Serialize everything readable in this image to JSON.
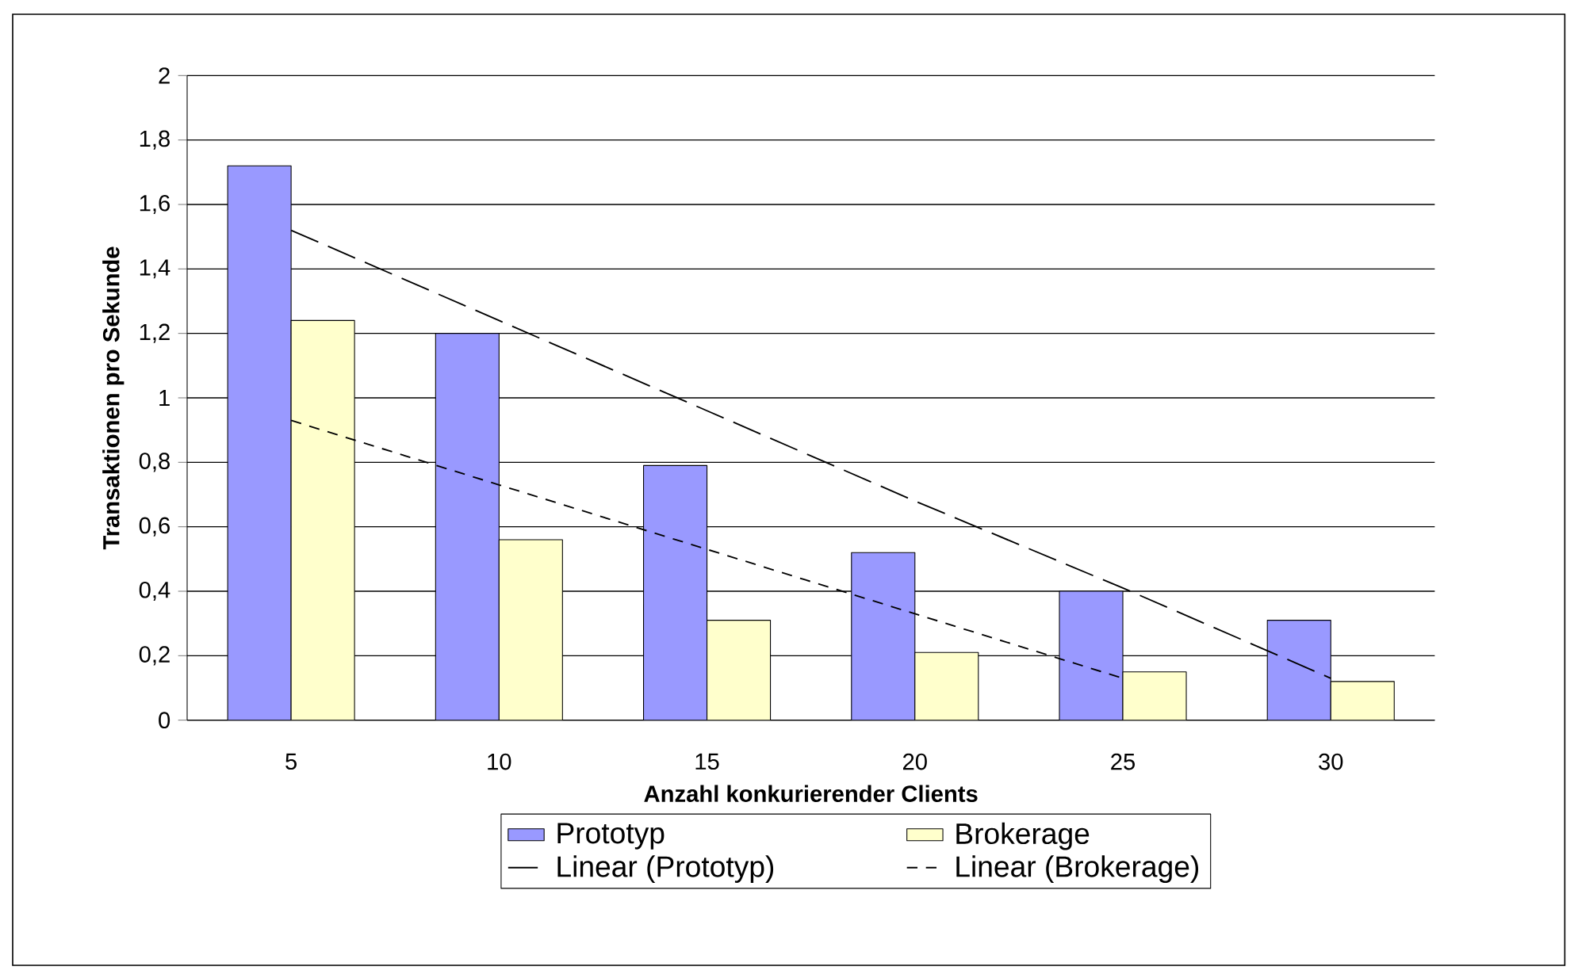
{
  "chart_data": {
    "type": "bar",
    "xlabel": "Anzahl konkurierender Clients",
    "ylabel": "Transaktionen pro Sekunde",
    "categories": [
      "5",
      "10",
      "15",
      "20",
      "25",
      "30"
    ],
    "ylim": [
      0,
      2
    ],
    "yticks": [
      0,
      {
        "value": 0.2,
        "label": "0,2"
      },
      {
        "value": 0.4,
        "label": "0,4"
      },
      {
        "value": 0.6,
        "label": "0,6"
      },
      {
        "value": 0.8,
        "label": "0,8"
      },
      1,
      {
        "value": 1.2,
        "label": "1,2"
      },
      {
        "value": 1.4,
        "label": "1,4"
      },
      {
        "value": 1.6,
        "label": "1,6"
      },
      {
        "value": 1.8,
        "label": "1,8"
      },
      2
    ],
    "grid": "y",
    "legend": "bottom",
    "series": [
      {
        "name": "Prototyp",
        "color": "#9999ff",
        "values": [
          1.72,
          1.2,
          0.79,
          0.52,
          0.4,
          0.31
        ]
      },
      {
        "name": "Brokerage",
        "color": "#ffffcc",
        "values": [
          1.24,
          0.56,
          0.31,
          0.21,
          0.15,
          0.12
        ]
      },
      {
        "name": "Linear (Prototyp)",
        "type": "line",
        "color": "#000000",
        "line_style": "dashed",
        "values": [
          1.52,
          1.24,
          0.96,
          0.68,
          0.41,
          0.13
        ]
      },
      {
        "name": "Linear (Brokerage)",
        "type": "line",
        "color": "#000000",
        "line_style": "dotted",
        "values": [
          0.93,
          0.73,
          0.53,
          0.33,
          0.13,
          null
        ]
      }
    ]
  }
}
